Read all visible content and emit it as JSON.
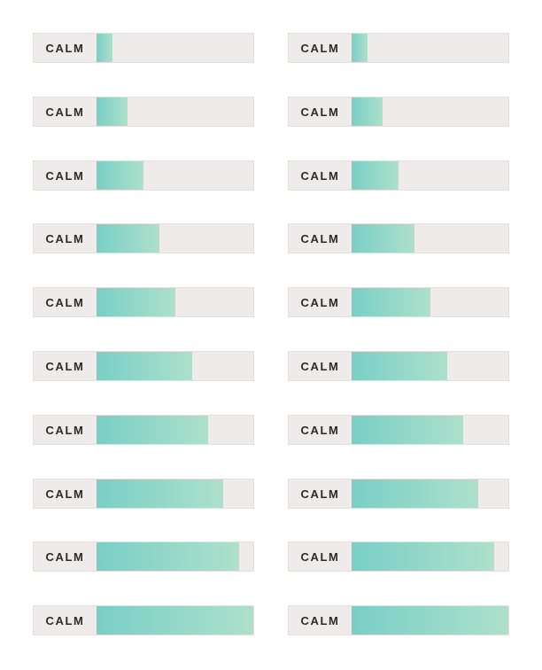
{
  "colors": {
    "track": "#eeebea",
    "fill_start": "#79cfc6",
    "fill_end": "#aee0cc",
    "label": "#2d2a29"
  },
  "meters": {
    "left": [
      {
        "label": "CALM",
        "level": 0.1
      },
      {
        "label": "CALM",
        "level": 0.2
      },
      {
        "label": "CALM",
        "level": 0.3
      },
      {
        "label": "CALM",
        "level": 0.4
      },
      {
        "label": "CALM",
        "level": 0.5
      },
      {
        "label": "CALM",
        "level": 0.61
      },
      {
        "label": "CALM",
        "level": 0.71
      },
      {
        "label": "CALM",
        "level": 0.81
      },
      {
        "label": "CALM",
        "level": 0.91
      },
      {
        "label": "CALM",
        "level": 1.0
      }
    ],
    "right": [
      {
        "label": "CALM",
        "level": 0.1
      },
      {
        "label": "CALM",
        "level": 0.2
      },
      {
        "label": "CALM",
        "level": 0.3
      },
      {
        "label": "CALM",
        "level": 0.4
      },
      {
        "label": "CALM",
        "level": 0.5
      },
      {
        "label": "CALM",
        "level": 0.61
      },
      {
        "label": "CALM",
        "level": 0.71
      },
      {
        "label": "CALM",
        "level": 0.81
      },
      {
        "label": "CALM",
        "level": 0.91
      },
      {
        "label": "CALM",
        "level": 1.0
      }
    ]
  }
}
